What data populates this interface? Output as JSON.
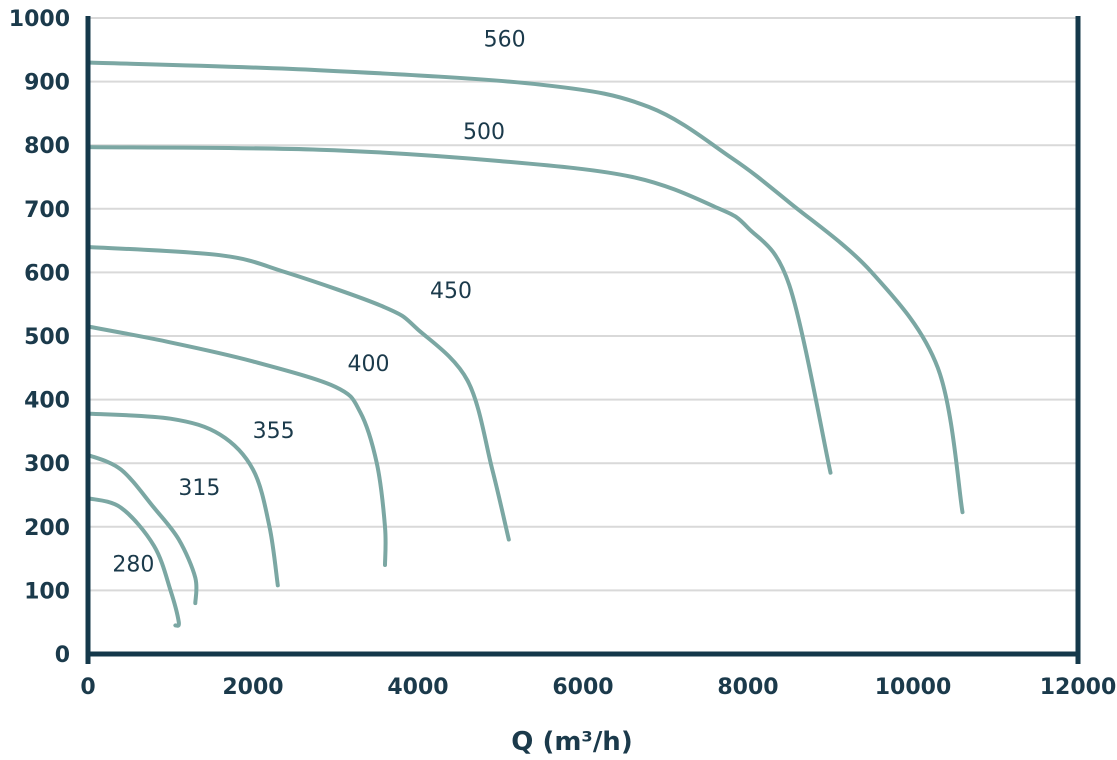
{
  "chart_data": {
    "type": "line",
    "title": "",
    "xlabel": "Q (m³/h)",
    "ylabel": "",
    "xlim": [
      0,
      12000
    ],
    "ylim": [
      0,
      1000
    ],
    "xticks": [
      0,
      2000,
      4000,
      6000,
      8000,
      10000,
      12000
    ],
    "yticks": [
      0,
      100,
      200,
      300,
      400,
      500,
      600,
      700,
      800,
      900,
      1000
    ],
    "grid": "horizontal",
    "series": [
      {
        "name": "280",
        "x": [
          0,
          400,
          800,
          1000,
          1100,
          1060
        ],
        "y": [
          245,
          230,
          170,
          100,
          50,
          45
        ]
      },
      {
        "name": "315",
        "x": [
          0,
          400,
          800,
          1100,
          1300,
          1300
        ],
        "y": [
          313,
          290,
          230,
          180,
          120,
          80
        ]
      },
      {
        "name": "355",
        "x": [
          0,
          1000,
          1600,
          2000,
          2200,
          2300
        ],
        "y": [
          378,
          370,
          345,
          290,
          200,
          108
        ]
      },
      {
        "name": "400",
        "x": [
          0,
          1000,
          2000,
          3000,
          3300,
          3500,
          3600,
          3600
        ],
        "y": [
          515,
          490,
          460,
          420,
          380,
          300,
          200,
          140
        ]
      },
      {
        "name": "450",
        "x": [
          0,
          1600,
          2400,
          3600,
          4000,
          4600,
          4900,
          5100
        ],
        "y": [
          640,
          627,
          600,
          545,
          510,
          430,
          290,
          180
        ]
      },
      {
        "name": "500",
        "x": [
          0,
          2800,
          5000,
          6600,
          7600,
          8000,
          8500,
          9000
        ],
        "y": [
          797,
          793,
          775,
          750,
          703,
          670,
          580,
          285
        ]
      },
      {
        "name": "560",
        "x": [
          0,
          2800,
          5500,
          6800,
          7800,
          8500,
          9500,
          10300,
          10600
        ],
        "y": [
          930,
          918,
          895,
          860,
          780,
          710,
          600,
          450,
          223
        ]
      }
    ],
    "label_points": [
      {
        "text": "280",
        "x": 550,
        "y": 130
      },
      {
        "text": "315",
        "x": 1350,
        "y": 250
      },
      {
        "text": "355",
        "x": 2250,
        "y": 340
      },
      {
        "text": "400",
        "x": 3400,
        "y": 445
      },
      {
        "text": "450",
        "x": 4400,
        "y": 560
      },
      {
        "text": "500",
        "x": 4800,
        "y": 810
      },
      {
        "text": "560",
        "x": 5050,
        "y": 955
      }
    ]
  }
}
